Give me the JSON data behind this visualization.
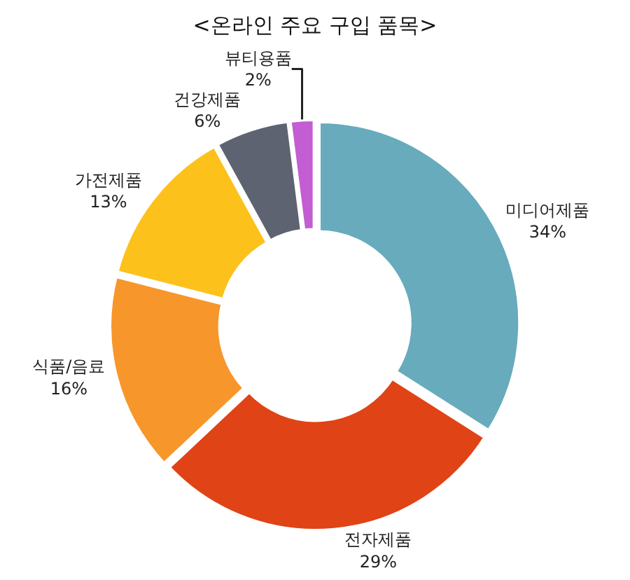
{
  "chart_data": {
    "type": "donut",
    "title": "<온라인 주요 구입 품목>",
    "categories": [
      "미디어제품",
      "전자제품",
      "식품/음료",
      "가전제품",
      "건강제품",
      "뷰티용품"
    ],
    "values": [
      34,
      29,
      16,
      13,
      6,
      2
    ],
    "value_labels": [
      "34%",
      "29%",
      "16%",
      "13%",
      "6%",
      "2%"
    ],
    "colors": [
      "#67abbd",
      "#e04316",
      "#f7962a",
      "#fdc11b",
      "#5d6370",
      "#c25ed1"
    ],
    "legend": false
  }
}
